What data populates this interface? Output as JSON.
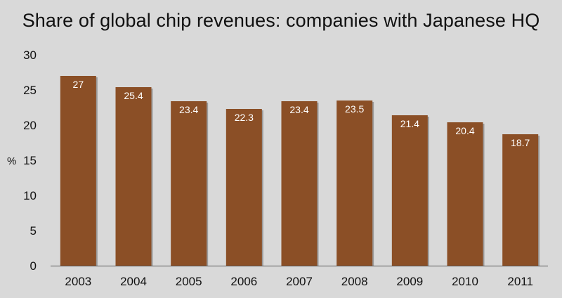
{
  "chart_data": {
    "type": "bar",
    "title": "Share of global chip revenues: companies with Japanese HQ",
    "ylabel": "%",
    "xlabel": "",
    "categories": [
      "2003",
      "2004",
      "2005",
      "2006",
      "2007",
      "2008",
      "2009",
      "2010",
      "2011"
    ],
    "values": [
      27,
      25.4,
      23.4,
      22.3,
      23.4,
      23.5,
      21.4,
      20.4,
      18.7
    ],
    "data_labels": [
      "27",
      "25.4",
      "23.4",
      "22.3",
      "23.4",
      "23.5",
      "21.4",
      "20.4",
      "18.7"
    ],
    "ylim": [
      0,
      30
    ],
    "yticks": [
      "0",
      "5",
      "10",
      "15",
      "20",
      "25",
      "30"
    ],
    "grid": false,
    "colors": {
      "bar": "#8b4f26",
      "background": "#d9d9d9"
    }
  }
}
